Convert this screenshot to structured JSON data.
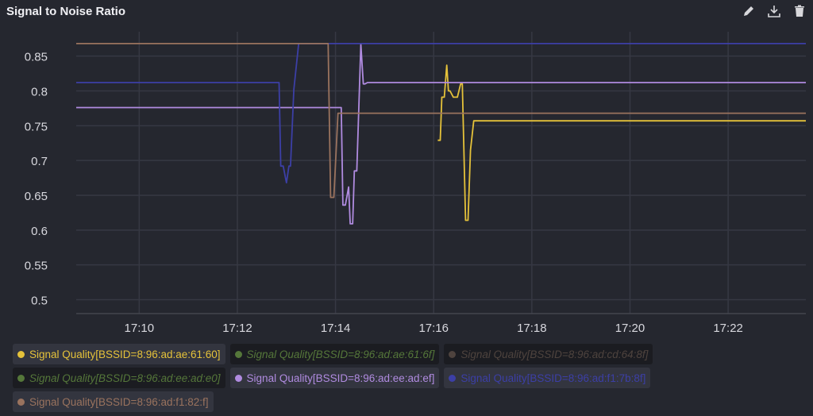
{
  "header": {
    "title": "Signal to Noise Ratio",
    "icons": [
      "pencil-icon",
      "download-icon",
      "trash-icon"
    ]
  },
  "chart_data": {
    "type": "line",
    "title": "Signal to Noise Ratio",
    "xlabel": "",
    "ylabel": "",
    "xlim": [
      "17:08:43",
      "17:23:35"
    ],
    "ylim": [
      0.48,
      0.885
    ],
    "x_ticks": [
      "17:10",
      "17:12",
      "17:14",
      "17:16",
      "17:18",
      "17:20",
      "17:22"
    ],
    "y_ticks": [
      "0.85",
      "0.8",
      "0.75",
      "0.7",
      "0.65",
      "0.6",
      "0.55",
      "0.5"
    ],
    "grid": true,
    "legend_placement": "bottom",
    "series": [
      {
        "name": "Signal Quality[BSSID=8:96:ad:ae:61:60]",
        "color": "#e5c23a",
        "visible": true,
        "x": [
          "17:16:05",
          "17:16:08",
          "17:16:10",
          "17:16:13",
          "17:16:16",
          "17:16:18",
          "17:16:20",
          "17:16:24",
          "17:16:29",
          "17:16:33",
          "17:16:35",
          "17:16:39",
          "17:16:42",
          "17:16:45",
          "17:16:49",
          "17:23:35"
        ],
        "y": [
          0.729,
          0.729,
          0.791,
          0.791,
          0.837,
          0.8,
          0.8,
          0.791,
          0.791,
          0.81,
          0.81,
          0.614,
          0.614,
          0.715,
          0.757,
          0.757
        ]
      },
      {
        "name": "Signal Quality[BSSID=8:96:ad:ae:61:6f]",
        "color": "#55773a",
        "visible": false,
        "x": [],
        "y": []
      },
      {
        "name": "Signal Quality[BSSID=8:96:ad:cd:64:8f]",
        "color": "#4e433e",
        "visible": false,
        "x": [],
        "y": []
      },
      {
        "name": "Signal Quality[BSSID=8:96:ad:ee:ad:e0]",
        "color": "#55773a",
        "visible": false,
        "x": [],
        "y": []
      },
      {
        "name": "Signal Quality[BSSID=8:96:ad:ee:ad:ef]",
        "color": "#b08be0",
        "visible": true,
        "x": [
          "17:08:43",
          "17:14:07",
          "17:14:09",
          "17:14:12",
          "17:14:16",
          "17:14:18",
          "17:14:21",
          "17:14:23",
          "17:14:26",
          "17:14:31",
          "17:14:34",
          "17:14:36",
          "17:14:39",
          "17:23:35"
        ],
        "y": [
          0.776,
          0.776,
          0.636,
          0.636,
          0.662,
          0.609,
          0.609,
          0.685,
          0.685,
          0.867,
          0.81,
          0.81,
          0.812,
          0.812
        ]
      },
      {
        "name": "Signal Quality[BSSID=8:96:ad:f1:7b:8f]",
        "color": "#3c3fa6",
        "visible": true,
        "x": [
          "17:08:43",
          "17:12:51",
          "17:12:53",
          "17:12:56",
          "17:13:00",
          "17:13:03",
          "17:13:05",
          "17:13:09",
          "17:13:15",
          "17:23:35"
        ],
        "y": [
          0.812,
          0.812,
          0.692,
          0.692,
          0.668,
          0.692,
          0.692,
          0.802,
          0.868,
          0.868
        ]
      },
      {
        "name": "Signal Quality[BSSID=8:96:ad:f1:82:f]",
        "color": "#9a735e",
        "visible": true,
        "x": [
          "17:08:43",
          "17:13:51",
          "17:13:54",
          "17:13:58",
          "17:14:03",
          "17:23:35"
        ],
        "y": [
          0.868,
          0.868,
          0.647,
          0.647,
          0.768,
          0.768
        ]
      }
    ]
  }
}
